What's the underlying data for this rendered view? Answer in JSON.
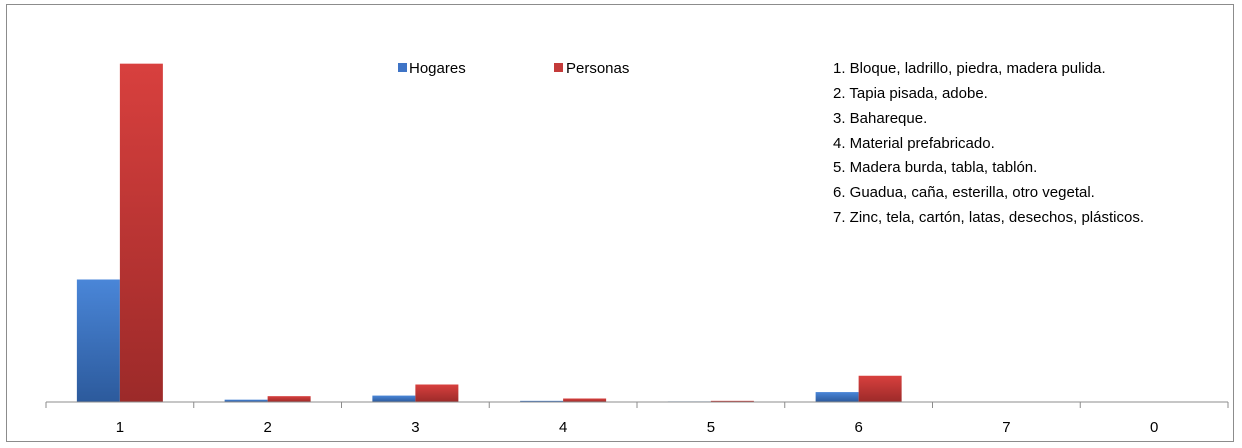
{
  "chart_data": {
    "type": "bar",
    "categories": [
      "1",
      "2",
      "3",
      "4",
      "5",
      "6",
      "7",
      "0"
    ],
    "series": [
      {
        "name": "Hogares",
        "color": "#3f74c6",
        "values": [
          2.1,
          0.04,
          0.11,
          0.02,
          0.01,
          0.17,
          0.0,
          0.0
        ]
      },
      {
        "name": "Personas",
        "color": "#c43b3a",
        "values": [
          5.8,
          0.1,
          0.3,
          0.06,
          0.02,
          0.45,
          0.0,
          0.0
        ]
      }
    ],
    "ylim": [
      0,
      6.0
    ],
    "grid": false,
    "legend_position": "top-center",
    "notes": [
      "1. Bloque, ladrillo, piedra, madera pulida.",
      "2. Tapia pisada, adobe.",
      "3. Bahareque.",
      "4. Material prefabricado.",
      "5. Madera burda, tabla, tablón.",
      "6. Guadua, caña, esterilla, otro vegetal.",
      "7. Zinc, tela, cartón, latas, desechos, plásticos."
    ]
  }
}
